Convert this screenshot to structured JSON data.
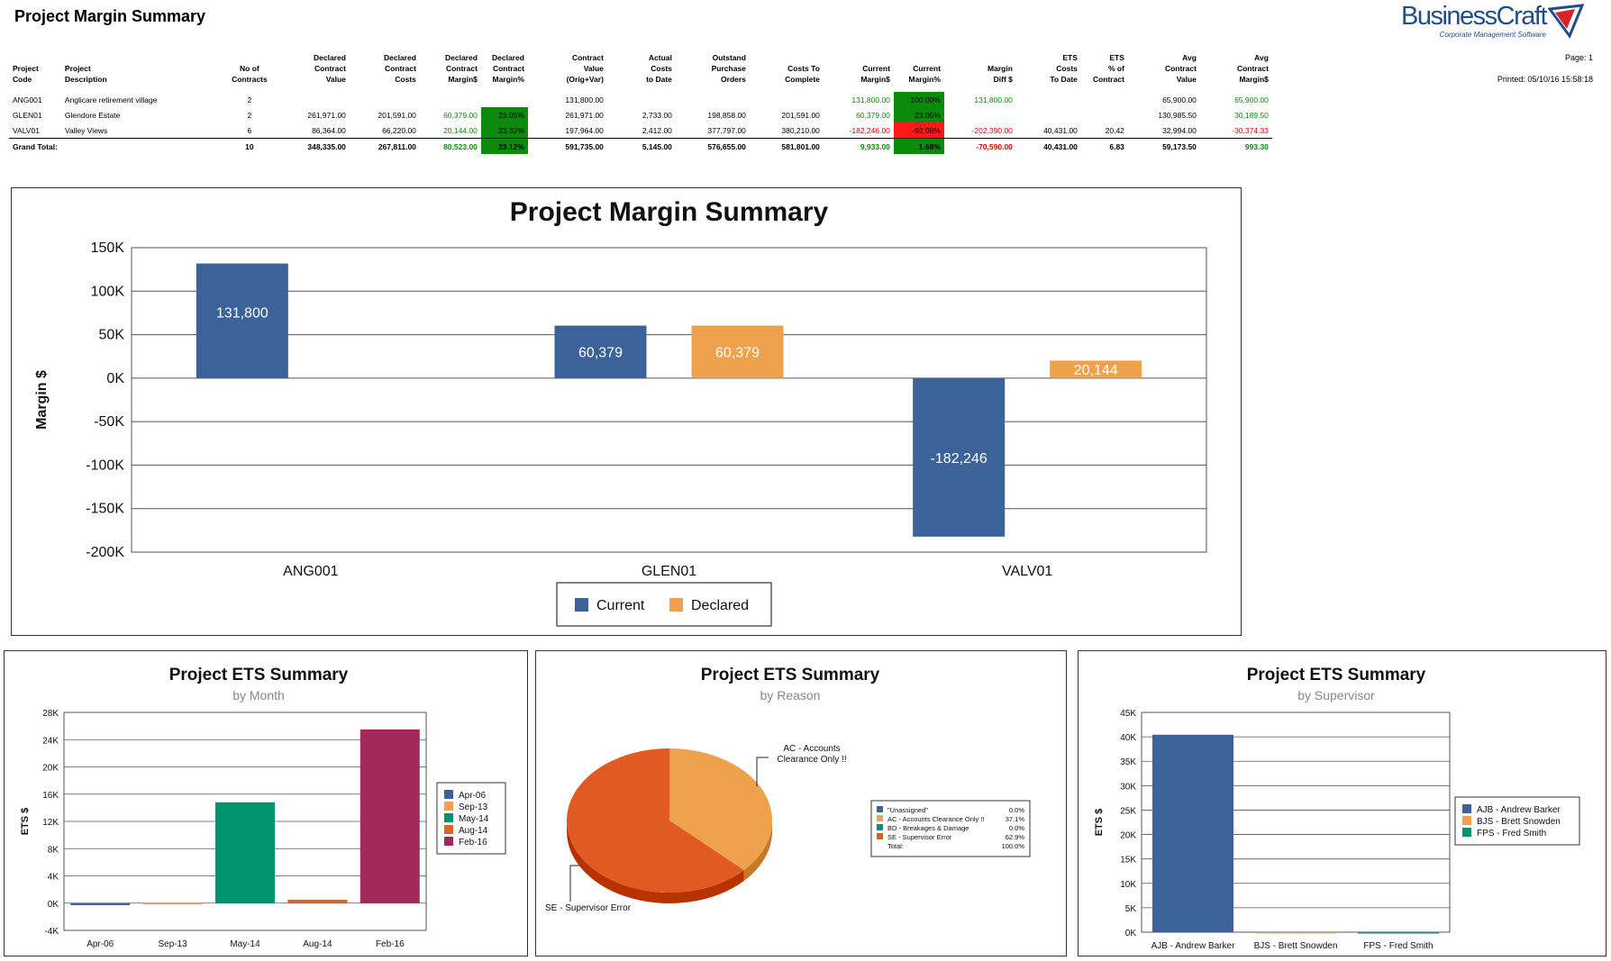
{
  "report": {
    "title": "Project Margin Summary",
    "logo_text": "BusinessCraft",
    "logo_sub": "Corporate Management Software",
    "page_label": "Page: 1",
    "printed_label": "Printed:  05/10/16  15:58:18"
  },
  "table": {
    "headers": [
      [
        "Project",
        "Code"
      ],
      [
        "Project",
        "Description"
      ],
      [
        "No of",
        "Contracts"
      ],
      [
        "Declared",
        "Contract",
        "Value"
      ],
      [
        "Declared",
        "Contract",
        "Costs"
      ],
      [
        "Declared",
        "Contract",
        "Margin$"
      ],
      [
        "Declared",
        "Contract",
        "Margin%"
      ],
      [
        "Contract",
        "Value",
        "(Orig+Var)"
      ],
      [
        "Actual",
        "Costs",
        "to Date"
      ],
      [
        "Outstand",
        "Purchase",
        "Orders"
      ],
      [
        "Costs To",
        "Complete"
      ],
      [
        "Current",
        "Margin$"
      ],
      [
        "Current",
        "Margin%"
      ],
      [
        "Margin",
        "Diff $"
      ],
      [
        "ETS",
        "Costs",
        "To Date"
      ],
      [
        "ETS",
        "% of",
        "Contract"
      ],
      [
        "Avg",
        "Contract",
        "Value"
      ],
      [
        "Avg",
        "Contract",
        "Margin$"
      ]
    ],
    "rows": [
      [
        "ANG001",
        "Anglicare retirement village",
        "2",
        "",
        "",
        "",
        "",
        "131,800.00",
        "",
        "",
        "",
        "131,800.00",
        "100.00%",
        "131,800.00",
        "",
        "",
        "65,900.00",
        "65,900.00"
      ],
      [
        "GLEN01",
        "Glendore Estate",
        "2",
        "261,971.00",
        "201,591.00",
        "60,379.00",
        "23.05%",
        "261,971.00",
        "2,733.00",
        "198,858.00",
        "201,591.00",
        "60,379.00",
        "23.05%",
        "",
        "",
        "",
        "130,985.50",
        "30,189.50"
      ],
      [
        "VALV01",
        "Valley Views",
        "6",
        "86,364.00",
        "66,220.00",
        "20,144.00",
        "23.32%",
        "197,964.00",
        "2,412.00",
        "377,797.00",
        "380,210.00",
        "-182,246.00",
        "-92.06%",
        "-202,390.00",
        "40,431.00",
        "20.42",
        "32,994.00",
        "-30,374.33"
      ],
      [
        "Grand Total:",
        "",
        "10",
        "348,335.00",
        "267,811.00",
        "80,523.00",
        "23.12%",
        "591,735.00",
        "5,145.00",
        "576,655.00",
        "581,801.00",
        "9,933.00",
        "1.68%",
        "-70,590.00",
        "40,431.00",
        "6.83",
        "59,173.50",
        "993.30"
      ]
    ]
  },
  "colors": {
    "current": "#3c6399",
    "declared": "#eea24d",
    "green": "#0b8a0b",
    "red": "#e00000"
  },
  "chart_data": [
    {
      "type": "bar",
      "title": "Project Margin Summary",
      "ylabel": "Margin $",
      "categories": [
        "ANG001",
        "GLEN01",
        "VALV01"
      ],
      "series": [
        {
          "name": "Current",
          "values": [
            131800,
            60379,
            -182246
          ],
          "labels": [
            "131,800",
            "60,379",
            "-182,246"
          ]
        },
        {
          "name": "Declared",
          "values": [
            0,
            60379,
            20144
          ],
          "labels": [
            "",
            "60,379",
            "20,144"
          ]
        }
      ],
      "yticks": [
        "150K",
        "100K",
        "50K",
        "0K",
        "-50K",
        "-100K",
        "-150K",
        "-200K"
      ],
      "ylim": [
        -200000,
        150000
      ],
      "grid": true,
      "legend": "bottom-center"
    },
    {
      "type": "bar",
      "title": "Project ETS Summary",
      "subtitle": "by Month",
      "ylabel": "ETS $",
      "categories": [
        "Apr-06",
        "Sep-13",
        "May-14",
        "Aug-14",
        "Feb-16"
      ],
      "values": [
        -300,
        0,
        14800,
        500,
        25500
      ],
      "colors": [
        "#3c6399",
        "#eea24d",
        "#00956f",
        "#e06326",
        "#a3295c"
      ],
      "yticks": [
        "28K",
        "24K",
        "20K",
        "16K",
        "12K",
        "8K",
        "4K",
        "0K",
        "-4K"
      ],
      "ylim": [
        -4000,
        28000
      ],
      "grid": true,
      "legend": "right"
    },
    {
      "type": "pie",
      "title": "Project ETS Summary",
      "subtitle": "by Reason",
      "slices": [
        {
          "name": "\"Unassigned\"",
          "value": 0.0,
          "label": "0.0%",
          "color": "#3c6399"
        },
        {
          "name": "AC - Accounts Clearance Only !!",
          "value": 37.1,
          "label": "37.1%",
          "color": "#eea24d"
        },
        {
          "name": "BD - Breakages & Damage",
          "value": 0.0,
          "label": "0.0%",
          "color": "#00956f"
        },
        {
          "name": "SE - Supervisor Error",
          "value": 62.9,
          "label": "62.9%",
          "color": "#e05a22"
        }
      ],
      "total_label": "Total:",
      "total_value": "100.0%",
      "callouts": [
        "AC - Accounts",
        "Clearance Only !!",
        "SE - Supervisor Error"
      ],
      "legend": "right"
    },
    {
      "type": "bar",
      "title": "Project ETS Summary",
      "subtitle": "by Supervisor",
      "ylabel": "ETS $",
      "categories": [
        "AJB - Andrew Barker",
        "BJS - Brett Snowden",
        "FPS - Fred Smith"
      ],
      "values": [
        40431,
        0,
        0
      ],
      "colors": [
        "#3c6399",
        "#eea24d",
        "#00956f"
      ],
      "yticks": [
        "45K",
        "40K",
        "35K",
        "30K",
        "25K",
        "20K",
        "15K",
        "10K",
        "5K",
        "0K"
      ],
      "ylim": [
        0,
        45000
      ],
      "grid": true,
      "legend": "right"
    }
  ]
}
